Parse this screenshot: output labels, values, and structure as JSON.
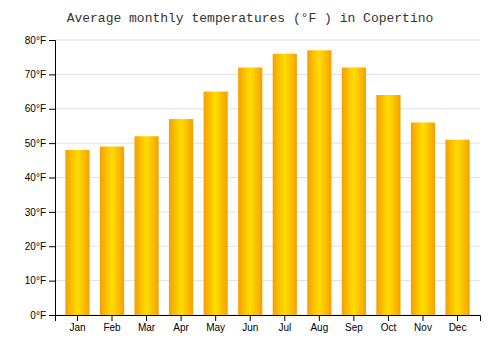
{
  "chart_data": {
    "type": "bar",
    "title": "Average monthly temperatures (°F ) in Copertino",
    "categories": [
      "Jan",
      "Feb",
      "Mar",
      "Apr",
      "May",
      "Jun",
      "Jul",
      "Aug",
      "Sep",
      "Oct",
      "Nov",
      "Dec"
    ],
    "values": [
      48,
      49,
      52,
      57,
      65,
      72,
      76,
      77,
      72,
      64,
      56,
      51
    ],
    "color": "#F5A000",
    "ylim": [
      0,
      80
    ],
    "yticks": [
      {
        "value": 0,
        "label": "0°F"
      },
      {
        "value": 10,
        "label": "10°F"
      },
      {
        "value": 20,
        "label": "20°F"
      },
      {
        "value": 30,
        "label": "30°F"
      },
      {
        "value": 40,
        "label": "40°F"
      },
      {
        "value": 50,
        "label": "50°F"
      },
      {
        "value": 60,
        "label": "60°F"
      },
      {
        "value": 70,
        "label": "70°F"
      },
      {
        "value": 80,
        "label": "80°F"
      }
    ],
    "grid": true
  }
}
